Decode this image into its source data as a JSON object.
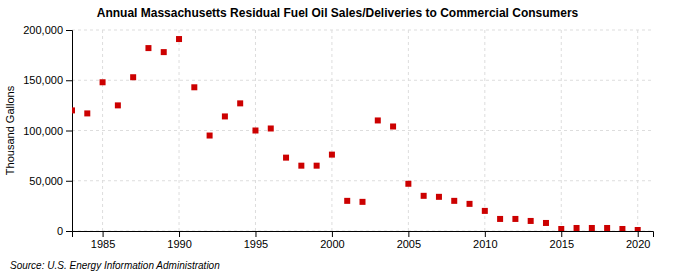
{
  "chart_data": {
    "type": "scatter",
    "title": "Annual Massachusetts Residual Fuel Oil Sales/Deliveries to Commercial Consumers",
    "y_label": "Thousand Gallons",
    "source": "Source: U.S. Energy Information Administration",
    "x": [
      1983,
      1984,
      1985,
      1986,
      1987,
      1988,
      1989,
      1990,
      1991,
      1992,
      1993,
      1994,
      1995,
      1996,
      1997,
      1998,
      1999,
      2000,
      2001,
      2002,
      2003,
      2004,
      2005,
      2006,
      2007,
      2008,
      2009,
      2010,
      2011,
      2012,
      2013,
      2014,
      2015,
      2016,
      2017,
      2018,
      2019,
      2020
    ],
    "values": [
      120000,
      117000,
      148000,
      125000,
      153000,
      182000,
      178000,
      191000,
      143000,
      95000,
      114000,
      127000,
      100000,
      102000,
      73000,
      65000,
      65000,
      76000,
      30000,
      29000,
      110000,
      104000,
      47000,
      35000,
      34000,
      30000,
      27000,
      20000,
      12000,
      12000,
      10000,
      8000,
      2000,
      3000,
      3000,
      3000,
      2000,
      1000
    ],
    "color": "#cc0000",
    "marker": "square",
    "xlim": [
      1983,
      2021
    ],
    "xticks": [
      1985,
      1990,
      1995,
      2000,
      2005,
      2010,
      2015,
      2020
    ],
    "ylim": [
      0,
      200000
    ],
    "yticks": [
      0,
      {
        "value": 50000,
        "label": "50,000"
      },
      {
        "value": 100000,
        "label": "100,000"
      },
      {
        "value": 150000,
        "label": "150,000"
      },
      {
        "value": 200000,
        "label": "200,000"
      }
    ],
    "grid": true
  }
}
